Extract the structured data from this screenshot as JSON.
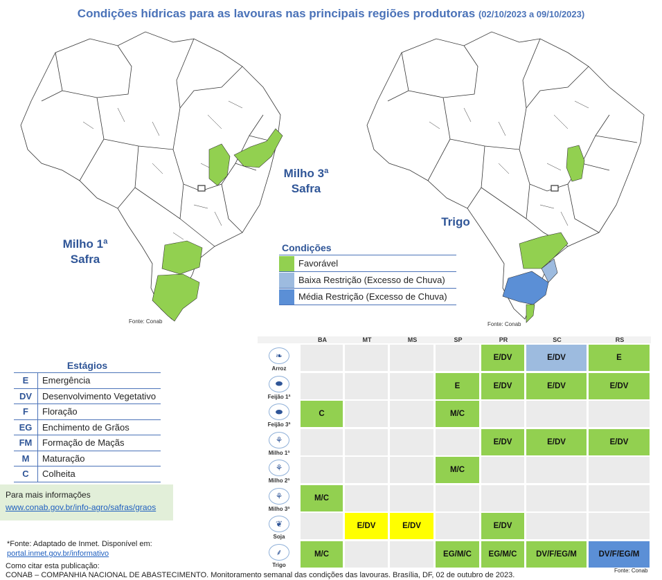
{
  "title": {
    "main": "Condições hídricas para as lavouras nas principais regiões produtoras",
    "dates": "(02/10/2023 a 09/10/2023)"
  },
  "maps": {
    "left": {
      "labels": [
        "Milho 1ª Safra",
        "Milho 3ª Safra"
      ],
      "label1_line1": "Milho 1ª",
      "label1_line2": "Safra",
      "label2_line1": "Milho 3ª",
      "label2_line2": "Safra",
      "source": "Fonte: Conab"
    },
    "right": {
      "label": "Trigo",
      "source": "Fonte: Conab"
    }
  },
  "colors": {
    "favoravel": "#92d050",
    "baixa": "#9dbbdf",
    "media": "#5b8fd6",
    "yellow": "#ffff00",
    "gray": "#ebebeb",
    "title": "#4a72b8"
  },
  "conditions": {
    "title": "Condições",
    "items": [
      {
        "label": "Favorável",
        "color": "#92d050"
      },
      {
        "label": "Baixa Restrição (Excesso de Chuva)",
        "color": "#9dbbdf"
      },
      {
        "label": "Média Restrição (Excesso de Chuva)",
        "color": "#5b8fd6"
      }
    ]
  },
  "stages": {
    "title": "Estágios",
    "items": [
      {
        "code": "E",
        "desc": "Emergência"
      },
      {
        "code": "DV",
        "desc": "Desenvolvimento Vegetativo"
      },
      {
        "code": "F",
        "desc": "Floração"
      },
      {
        "code": "EG",
        "desc": "Enchimento de Grãos"
      },
      {
        "code": "FM",
        "desc": "Formação de Maçãs"
      },
      {
        "code": "M",
        "desc": "Maturação"
      },
      {
        "code": "C",
        "desc": "Colheita"
      }
    ]
  },
  "info": {
    "text": "Para mais informações",
    "link": "www.conab.gov.br/info-agro/safras/graos"
  },
  "footnote": {
    "text": "*Fonte: Adaptado de Inmet. Disponível em:",
    "link": "portal.inmet.gov.br/informativo"
  },
  "citation": {
    "label": "Como citar esta publicação:",
    "text": "CONAB – COMPANHIA NACIONAL DE ABASTECIMENTO. Monitoramento semanal das condições das lavouras. Brasília, DF, 02 de outubro de 2023."
  },
  "table_source": "Fonte: Conab",
  "table": {
    "columns": [
      "BA",
      "MT",
      "MS",
      "SP",
      "PR",
      "SC",
      "RS"
    ],
    "rows": [
      {
        "crop": "Arroz",
        "icon": "rice-icon",
        "cells": [
          null,
          null,
          null,
          null,
          {
            "t": "E/DV",
            "c": "g"
          },
          {
            "t": "E/DV",
            "c": "b"
          },
          {
            "t": "E",
            "c": "g"
          }
        ]
      },
      {
        "crop": "Feijão 1ª",
        "icon": "bean-icon",
        "cells": [
          null,
          null,
          null,
          {
            "t": "E",
            "c": "g"
          },
          {
            "t": "E/DV",
            "c": "g"
          },
          {
            "t": "E/DV",
            "c": "g"
          },
          {
            "t": "E/DV",
            "c": "g"
          }
        ]
      },
      {
        "crop": "Feijão 3ª",
        "icon": "bean-icon",
        "cells": [
          {
            "t": "C",
            "c": "g"
          },
          null,
          null,
          {
            "t": "M/C",
            "c": "g"
          },
          null,
          null,
          null
        ]
      },
      {
        "crop": "Milho 1ª",
        "icon": "corn-icon",
        "cells": [
          null,
          null,
          null,
          null,
          {
            "t": "E/DV",
            "c": "g"
          },
          {
            "t": "E/DV",
            "c": "g"
          },
          {
            "t": "E/DV",
            "c": "g"
          }
        ]
      },
      {
        "crop": "Milho 2ª",
        "icon": "corn-icon",
        "cells": [
          null,
          null,
          null,
          {
            "t": "M/C",
            "c": "g"
          },
          null,
          null,
          null
        ]
      },
      {
        "crop": "Milho 3ª",
        "icon": "corn-icon",
        "cells": [
          {
            "t": "M/C",
            "c": "g"
          },
          null,
          null,
          null,
          null,
          null,
          null
        ]
      },
      {
        "crop": "Soja",
        "icon": "soy-icon",
        "cells": [
          null,
          {
            "t": "E/DV",
            "c": "y"
          },
          {
            "t": "E/DV",
            "c": "y"
          },
          null,
          {
            "t": "E/DV",
            "c": "g"
          },
          null,
          null
        ]
      },
      {
        "crop": "Trigo",
        "icon": "wheat-icon",
        "cells": [
          {
            "t": "M/C",
            "c": "g"
          },
          null,
          null,
          {
            "t": "EG/M/C",
            "c": "g"
          },
          {
            "t": "EG/M/C",
            "c": "g"
          },
          {
            "t": "DV/F/EG/M",
            "c": "g"
          },
          {
            "t": "DV/F/EG/M",
            "c": "m"
          }
        ]
      }
    ]
  }
}
